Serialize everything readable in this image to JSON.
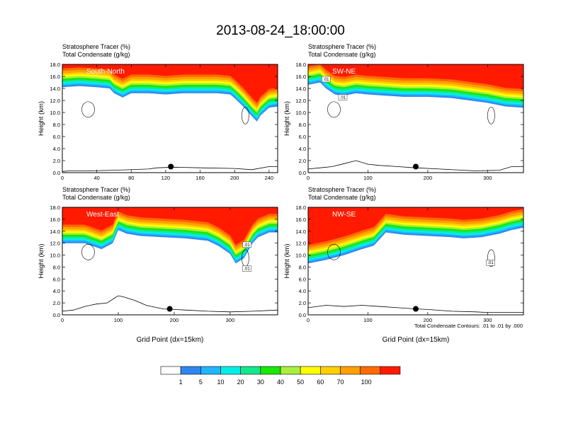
{
  "figure": {
    "title": "2013-08-24_18:00:00",
    "footnote": "Total Condensate Contours: .01 to .01 by .000",
    "colorbar": {
      "labels": [
        "1",
        "5",
        "10",
        "20",
        "30",
        "40",
        "50",
        "60",
        "70",
        "100"
      ],
      "colors": [
        "#ffffff",
        "#2f86f0",
        "#1fb6ff",
        "#00f0e8",
        "#12e88c",
        "#19e800",
        "#a8f03c",
        "#ffff00",
        "#ffd000",
        "#ffa000",
        "#ff6a00",
        "#ff1a00"
      ]
    }
  },
  "chart_data": [
    {
      "type": "area",
      "panel_label": "South-North",
      "header_lines": [
        "Stratosphere Tracer   (%)",
        "Total Condensate   (g/kg)"
      ],
      "ylabel": "Height (km)",
      "xlabel": "",
      "xlim": [
        0,
        250
      ],
      "ylim": [
        0,
        18
      ],
      "xticks": [
        "0",
        "40",
        "80",
        "120",
        "160",
        "200",
        "240"
      ],
      "xtick_values": [
        0,
        40,
        80,
        120,
        160,
        200,
        240
      ],
      "yticks": [
        "0.0",
        "2.0",
        "4.0",
        "6.0",
        "8.0",
        "10.0",
        "12.0",
        "14.0",
        "16.0",
        "18.0"
      ],
      "tropopause": {
        "x": [
          0,
          20,
          40,
          55,
          60,
          70,
          80,
          100,
          120,
          140,
          160,
          180,
          195,
          200,
          210,
          220,
          226,
          230,
          240,
          250
        ],
        "y": [
          14.2,
          14.4,
          14.2,
          14.0,
          13.2,
          12.5,
          13.2,
          13.2,
          13.0,
          13.2,
          13.2,
          13.2,
          13.0,
          12.4,
          11.0,
          9.4,
          8.5,
          9.5,
          10.8,
          11.0
        ]
      },
      "terrain": {
        "x": [
          0,
          10,
          30,
          60,
          100,
          110,
          130,
          160,
          200,
          220,
          240,
          250
        ],
        "y": [
          0.2,
          0.3,
          0.3,
          0.4,
          0.6,
          0.8,
          0.9,
          0.8,
          0.7,
          0.5,
          1.0,
          1.0
        ]
      },
      "marker": {
        "x": 126,
        "y": 1.0
      },
      "contour_labels": []
    },
    {
      "type": "area",
      "panel_label": "SW-NE",
      "header_lines": [
        "Stratosphere Tracer   (%)",
        "Total Condensate   (g/kg)"
      ],
      "ylabel": "Height (km)",
      "xlabel": "",
      "xlim": [
        0,
        360
      ],
      "ylim": [
        0,
        18
      ],
      "xticks": [
        "0",
        "100",
        "200",
        "300"
      ],
      "xtick_values": [
        0,
        100,
        200,
        300
      ],
      "yticks": [
        "0.0",
        "2.0",
        "4.0",
        "6.0",
        "8.0",
        "10.0",
        "12.0",
        "14.0",
        "16.0",
        "18.0"
      ],
      "tropopause": {
        "x": [
          0,
          20,
          30,
          45,
          60,
          80,
          100,
          130,
          160,
          200,
          240,
          270,
          300,
          330,
          360
        ],
        "y": [
          14.6,
          15.0,
          14.0,
          13.0,
          12.8,
          13.2,
          13.0,
          12.8,
          12.6,
          12.6,
          12.4,
          12.0,
          11.6,
          11.0,
          10.8
        ]
      },
      "terrain": {
        "x": [
          0,
          20,
          40,
          60,
          80,
          100,
          120,
          150,
          180,
          220,
          260,
          280,
          320,
          340,
          360
        ],
        "y": [
          0.6,
          0.8,
          1.0,
          1.5,
          2.0,
          1.4,
          1.2,
          1.0,
          0.8,
          0.6,
          0.4,
          0.3,
          0.4,
          1.0,
          1.0
        ]
      },
      "marker": {
        "x": 180,
        "y": 1.0
      },
      "contour_labels": [
        ".01",
        ".01"
      ]
    },
    {
      "type": "area",
      "panel_label": "West-East",
      "header_lines": [
        "Stratosphere Tracer   (%)",
        "Total Condensate   (g/kg)"
      ],
      "ylabel": "Height (km)",
      "xlabel": "Grid Point (dx=15km)",
      "xlim": [
        0,
        385
      ],
      "ylim": [
        0,
        18
      ],
      "xticks": [
        "0",
        "100",
        "200",
        "300"
      ],
      "xtick_values": [
        0,
        100,
        200,
        300
      ],
      "yticks": [
        "0.0",
        "2.0",
        "4.0",
        "6.0",
        "8.0",
        "10.0",
        "12.0",
        "14.0",
        "16.0",
        "18.0"
      ],
      "tropopause": {
        "x": [
          0,
          40,
          70,
          90,
          100,
          115,
          140,
          180,
          220,
          260,
          280,
          300,
          310,
          325,
          340,
          350,
          370,
          385
        ],
        "y": [
          12.0,
          12.0,
          11.0,
          12.0,
          14.2,
          13.6,
          13.2,
          13.0,
          12.8,
          12.4,
          11.5,
          10.2,
          8.6,
          9.5,
          12.0,
          13.0,
          13.8,
          13.8
        ]
      },
      "terrain": {
        "x": [
          0,
          20,
          40,
          60,
          80,
          100,
          110,
          130,
          150,
          180,
          220,
          260,
          300,
          340,
          385
        ],
        "y": [
          0.6,
          0.8,
          1.4,
          1.8,
          2.0,
          3.2,
          3.0,
          2.4,
          1.6,
          1.0,
          0.8,
          0.6,
          0.5,
          0.6,
          0.8
        ]
      },
      "marker": {
        "x": 192,
        "y": 1.0
      },
      "contour_labels": [
        ".01",
        ".01"
      ]
    },
    {
      "type": "area",
      "panel_label": "NW-SE",
      "header_lines": [
        "Stratosphere Tracer   (%)",
        "Total Condensate   (g/kg)"
      ],
      "ylabel": "Height (km)",
      "xlabel": "Grid Point (dx=15km)",
      "xlim": [
        0,
        360
      ],
      "ylim": [
        0,
        18
      ],
      "xticks": [
        "0",
        "100",
        "200",
        "300"
      ],
      "xtick_values": [
        0,
        100,
        200,
        300
      ],
      "yticks": [
        "0.0",
        "2.0",
        "4.0",
        "6.0",
        "8.0",
        "10.0",
        "12.0",
        "14.0",
        "16.0",
        "18.0"
      ],
      "tropopause": {
        "x": [
          0,
          30,
          60,
          90,
          110,
          130,
          160,
          200,
          240,
          260,
          290,
          320,
          340,
          360
        ],
        "y": [
          8.6,
          9.2,
          10.0,
          11.0,
          11.6,
          13.8,
          13.4,
          13.2,
          13.0,
          12.8,
          13.0,
          13.6,
          14.2,
          14.6
        ]
      },
      "terrain": {
        "x": [
          0,
          30,
          60,
          90,
          120,
          150,
          180,
          200,
          240,
          280,
          300,
          330,
          360
        ],
        "y": [
          1.2,
          1.6,
          1.4,
          1.6,
          1.4,
          1.2,
          1.0,
          0.9,
          0.6,
          0.5,
          0.4,
          0.4,
          0.4
        ]
      },
      "marker": {
        "x": 180,
        "y": 1.0
      },
      "contour_labels": [
        ".01"
      ]
    }
  ]
}
